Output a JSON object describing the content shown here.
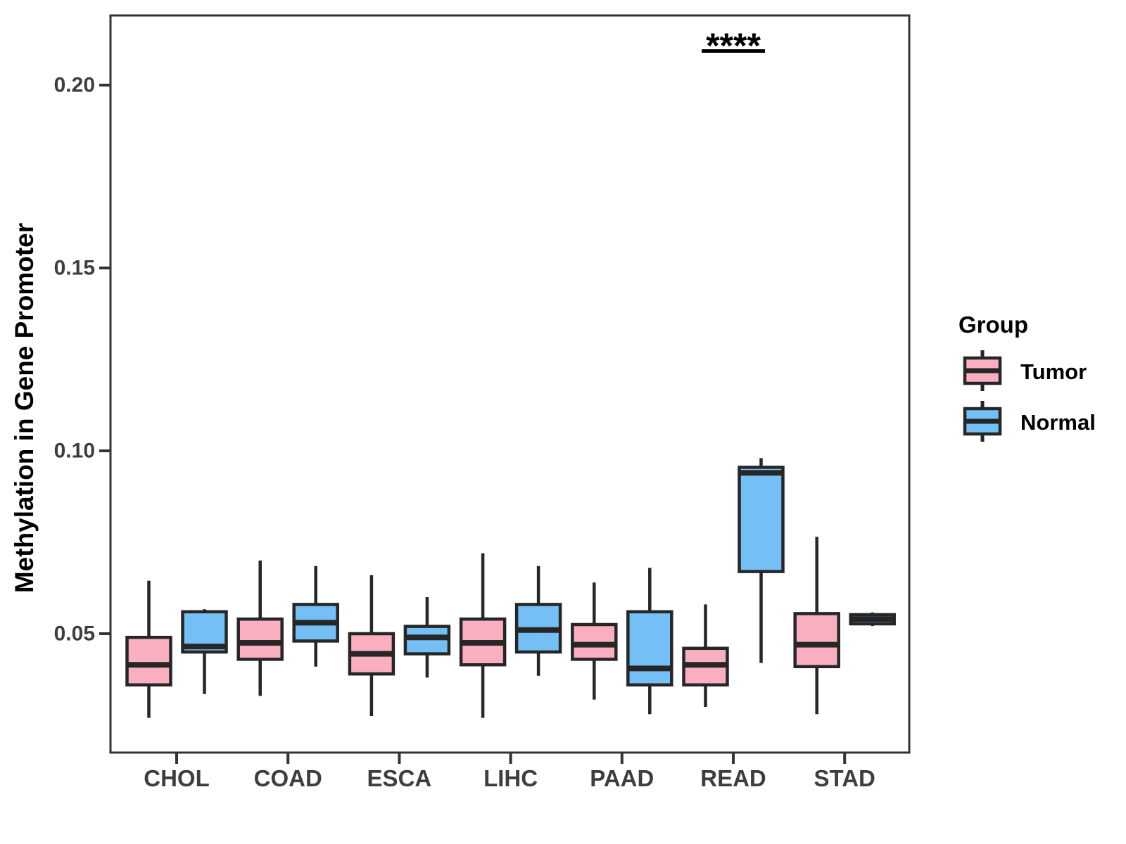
{
  "figure": {
    "background": "#ffffff"
  },
  "y_axis": {
    "title": "Methylation in Gene Promoter",
    "tick_labels": [
      "0.20",
      "0.15",
      "0.10",
      "0.05"
    ],
    "tick_values": [
      0.2,
      0.15,
      0.1,
      0.05
    ]
  },
  "x_axis": {
    "categories": [
      "CHOL",
      "COAD",
      "ESCA",
      "LIHC",
      "PAAD",
      "READ",
      "STAD"
    ]
  },
  "legend": {
    "title": "Group",
    "items": [
      {
        "label": "Tumor",
        "color": "#FAAFC0"
      },
      {
        "label": "Normal",
        "color": "#74BFF5"
      }
    ]
  },
  "annotation": {
    "text": "****",
    "category": "READ"
  },
  "colors": {
    "box_stroke": "#262626",
    "axis_line": "#333333",
    "tick_text": "#3E3E3E",
    "annotation_text": "#000000"
  },
  "chart_data": {
    "type": "boxplot",
    "title": "",
    "xlabel": "",
    "ylabel": "Methylation in Gene Promoter",
    "categories": [
      "CHOL",
      "COAD",
      "ESCA",
      "LIHC",
      "PAAD",
      "READ",
      "STAD"
    ],
    "yticks": [
      0.05,
      0.1,
      0.15,
      0.2
    ],
    "ylim": [
      0.017,
      0.219
    ],
    "grid": false,
    "legend_position": "right",
    "series": [
      {
        "name": "Tumor",
        "color": "#FAAFC0",
        "boxes": [
          {
            "category": "CHOL",
            "low": 0.027,
            "q1": 0.036,
            "median": 0.0415,
            "q3": 0.049,
            "high": 0.0645
          },
          {
            "category": "COAD",
            "low": 0.033,
            "q1": 0.043,
            "median": 0.0475,
            "q3": 0.054,
            "high": 0.07
          },
          {
            "category": "ESCA",
            "low": 0.0275,
            "q1": 0.039,
            "median": 0.0445,
            "q3": 0.05,
            "high": 0.066
          },
          {
            "category": "LIHC",
            "low": 0.027,
            "q1": 0.0415,
            "median": 0.0475,
            "q3": 0.054,
            "high": 0.072
          },
          {
            "category": "PAAD",
            "low": 0.032,
            "q1": 0.043,
            "median": 0.047,
            "q3": 0.0525,
            "high": 0.064
          },
          {
            "category": "READ",
            "low": 0.03,
            "q1": 0.036,
            "median": 0.0415,
            "q3": 0.046,
            "high": 0.058
          },
          {
            "category": "STAD",
            "low": 0.028,
            "q1": 0.041,
            "median": 0.047,
            "q3": 0.0555,
            "high": 0.0765
          }
        ]
      },
      {
        "name": "Normal",
        "color": "#74BFF5",
        "boxes": [
          {
            "category": "CHOL",
            "low": 0.0335,
            "q1": 0.045,
            "median": 0.0465,
            "q3": 0.056,
            "high": 0.0567
          },
          {
            "category": "COAD",
            "low": 0.041,
            "q1": 0.048,
            "median": 0.053,
            "q3": 0.058,
            "high": 0.0685
          },
          {
            "category": "ESCA",
            "low": 0.038,
            "q1": 0.0445,
            "median": 0.049,
            "q3": 0.052,
            "high": 0.06
          },
          {
            "category": "LIHC",
            "low": 0.0385,
            "q1": 0.045,
            "median": 0.051,
            "q3": 0.058,
            "high": 0.0685
          },
          {
            "category": "PAAD",
            "low": 0.028,
            "q1": 0.036,
            "median": 0.0405,
            "q3": 0.056,
            "high": 0.068
          },
          {
            "category": "READ",
            "low": 0.042,
            "q1": 0.067,
            "median": 0.094,
            "q3": 0.0955,
            "high": 0.098
          },
          {
            "category": "STAD",
            "low": 0.0521,
            "q1": 0.0527,
            "median": 0.054,
            "q3": 0.0552,
            "high": 0.0558
          }
        ]
      }
    ],
    "annotations": [
      {
        "text": "****",
        "category": "READ",
        "type": "significance"
      }
    ]
  }
}
